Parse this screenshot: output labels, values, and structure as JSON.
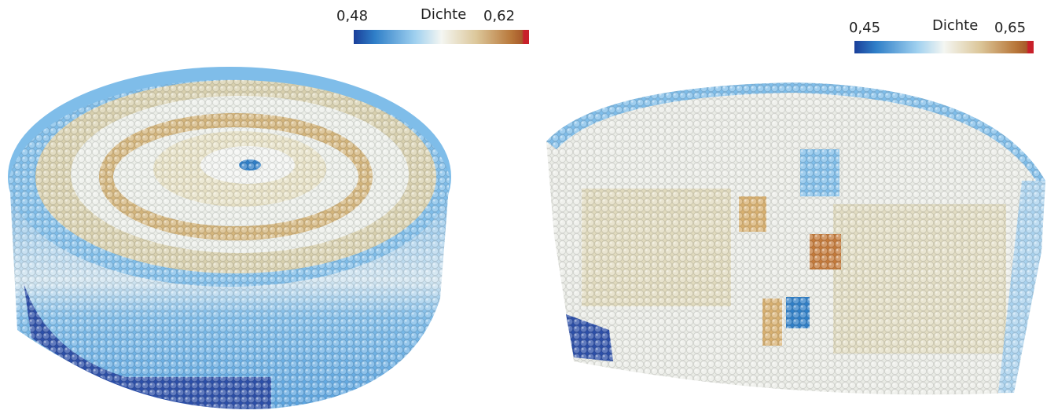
{
  "left": {
    "colorbar": {
      "min_label": "0,48",
      "title": "Dichte",
      "max_label": "0,62"
    }
  },
  "right": {
    "colorbar": {
      "min_label": "0,45",
      "title": "Dichte",
      "max_label": "0,65"
    }
  }
}
